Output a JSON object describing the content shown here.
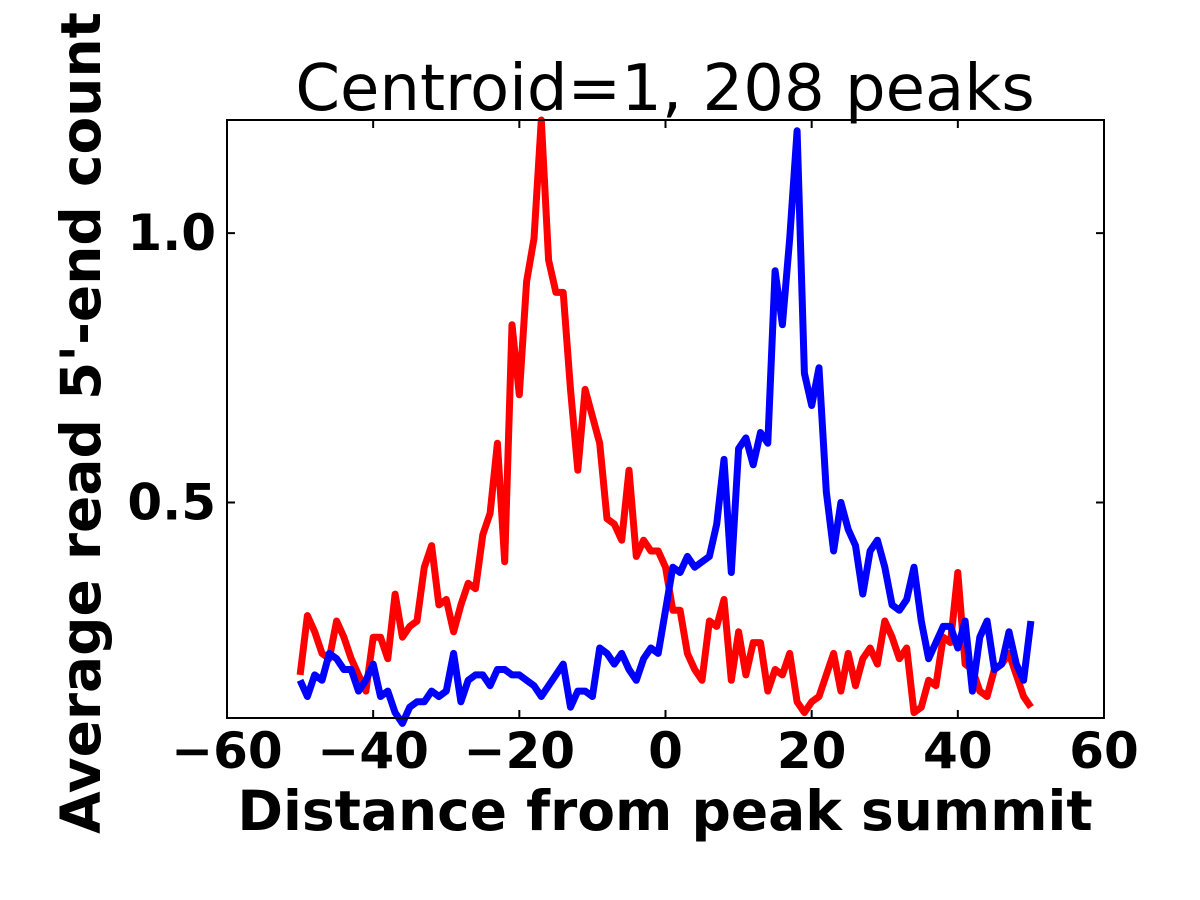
{
  "chart_data": {
    "type": "line",
    "title": "Centroid=1, 208 peaks",
    "xlabel": "Distance from peak summit",
    "ylabel": "Average read 5'-end count",
    "xlim": [
      -60,
      60
    ],
    "ylim": [
      0.1,
      1.21
    ],
    "xticks": [
      -60,
      -40,
      -20,
      0,
      20,
      40,
      60
    ],
    "xtick_labels": [
      "−60",
      "−40",
      "−20",
      "0",
      "20",
      "40",
      "60"
    ],
    "yticks": [
      0.5,
      1.0
    ],
    "ytick_labels": [
      "0.5",
      "1.0"
    ],
    "grid": false,
    "legend": "none",
    "x": [
      -50,
      -49,
      -48,
      -47,
      -46,
      -45,
      -44,
      -43,
      -42,
      -41,
      -40,
      -39,
      -38,
      -37,
      -36,
      -35,
      -34,
      -33,
      -32,
      -31,
      -30,
      -29,
      -28,
      -27,
      -26,
      -25,
      -24,
      -23,
      -22,
      -21,
      -20,
      -19,
      -18,
      -17,
      -16,
      -15,
      -14,
      -13,
      -12,
      -11,
      -10,
      -9,
      -8,
      -7,
      -6,
      -5,
      -4,
      -3,
      -2,
      -1,
      0,
      1,
      2,
      3,
      4,
      5,
      6,
      7,
      8,
      9,
      10,
      11,
      12,
      13,
      14,
      15,
      16,
      17,
      18,
      19,
      20,
      21,
      22,
      23,
      24,
      25,
      26,
      27,
      28,
      29,
      30,
      31,
      32,
      33,
      34,
      35,
      36,
      37,
      38,
      39,
      40,
      41,
      42,
      43,
      44,
      45,
      46,
      47,
      48,
      49,
      50
    ],
    "series": [
      {
        "color": "#ff0000",
        "values": [
          0.18,
          0.29,
          0.26,
          0.22,
          0.21,
          0.28,
          0.25,
          0.21,
          0.18,
          0.15,
          0.25,
          0.25,
          0.21,
          0.33,
          0.25,
          0.27,
          0.28,
          0.38,
          0.42,
          0.31,
          0.32,
          0.26,
          0.31,
          0.35,
          0.34,
          0.44,
          0.48,
          0.61,
          0.39,
          0.83,
          0.7,
          0.91,
          0.99,
          1.21,
          0.95,
          0.89,
          0.89,
          0.71,
          0.56,
          0.71,
          0.66,
          0.61,
          0.47,
          0.46,
          0.43,
          0.56,
          0.4,
          0.43,
          0.41,
          0.41,
          0.38,
          0.3,
          0.3,
          0.22,
          0.19,
          0.17,
          0.28,
          0.27,
          0.32,
          0.17,
          0.26,
          0.18,
          0.24,
          0.24,
          0.15,
          0.19,
          0.18,
          0.22,
          0.13,
          0.11,
          0.13,
          0.14,
          0.18,
          0.22,
          0.15,
          0.22,
          0.16,
          0.21,
          0.23,
          0.2,
          0.28,
          0.25,
          0.21,
          0.23,
          0.11,
          0.12,
          0.17,
          0.16,
          0.25,
          0.24,
          0.37,
          0.2,
          0.19,
          0.15,
          0.14,
          0.19,
          0.2,
          0.22,
          0.18,
          0.14,
          0.12
        ]
      },
      {
        "color": "#0000ff",
        "values": [
          0.17,
          0.14,
          0.18,
          0.17,
          0.22,
          0.21,
          0.19,
          0.19,
          0.15,
          0.17,
          0.2,
          0.14,
          0.15,
          0.11,
          0.09,
          0.12,
          0.13,
          0.13,
          0.15,
          0.14,
          0.15,
          0.22,
          0.13,
          0.17,
          0.18,
          0.18,
          0.16,
          0.19,
          0.19,
          0.18,
          0.18,
          0.17,
          0.16,
          0.14,
          0.16,
          0.18,
          0.2,
          0.12,
          0.15,
          0.15,
          0.14,
          0.23,
          0.22,
          0.2,
          0.22,
          0.19,
          0.17,
          0.21,
          0.23,
          0.22,
          0.3,
          0.38,
          0.37,
          0.4,
          0.38,
          0.39,
          0.4,
          0.46,
          0.58,
          0.37,
          0.6,
          0.62,
          0.57,
          0.63,
          0.61,
          0.93,
          0.83,
          0.99,
          1.19,
          0.74,
          0.68,
          0.75,
          0.52,
          0.41,
          0.5,
          0.45,
          0.42,
          0.33,
          0.41,
          0.43,
          0.38,
          0.31,
          0.3,
          0.32,
          0.38,
          0.28,
          0.21,
          0.24,
          0.27,
          0.27,
          0.23,
          0.28,
          0.15,
          0.25,
          0.28,
          0.19,
          0.2,
          0.26,
          0.2,
          0.17,
          0.28
        ]
      }
    ]
  }
}
